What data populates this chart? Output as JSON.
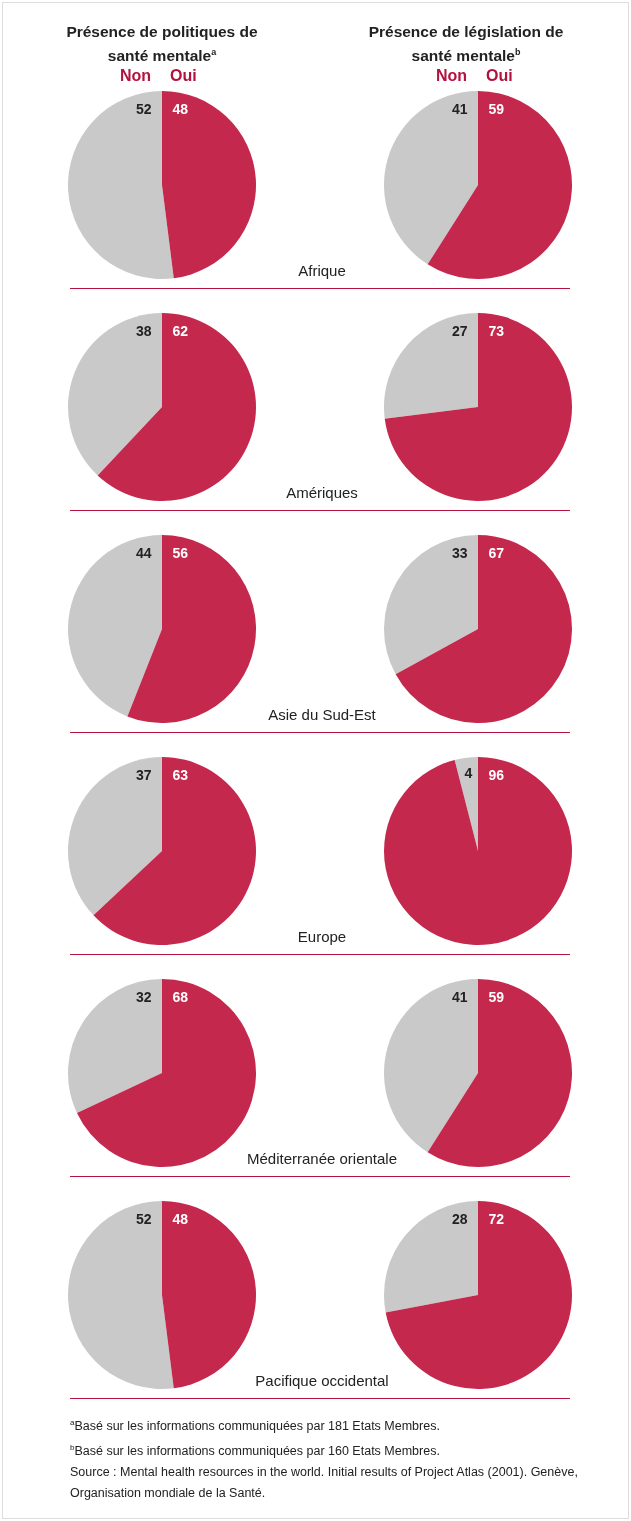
{
  "chart_data": [
    {
      "type": "pie",
      "title": "Présence de politiques de santé mentale$^{a}$",
      "categories": [
        "Non",
        "Oui"
      ],
      "values": [
        52,
        48
      ],
      "colors": [
        "#c9c9c9",
        "#c4284c"
      ],
      "data_labels": true,
      "xlabel": "Afrique"
    },
    {
      "type": "pie",
      "title": "Présence de législation de santé mentale$^{b}$",
      "categories": [
        "Non",
        "Oui"
      ],
      "values": [
        41,
        59
      ],
      "colors": [
        "#c9c9c9",
        "#c4284c"
      ],
      "data_labels": true
    },
    {
      "type": "pie",
      "categories": [
        null,
        null
      ],
      "values": [
        38,
        62
      ],
      "colors": [
        "#c9c9c9",
        "#c4284c"
      ],
      "data_labels": true,
      "xlabel": "Amériques"
    },
    {
      "type": "pie",
      "categories": [
        null,
        null
      ],
      "values": [
        27,
        73
      ],
      "colors": [
        "#c9c9c9",
        "#c4284c"
      ],
      "data_labels": true
    },
    {
      "type": "pie",
      "categories": [
        null,
        null
      ],
      "values": [
        44,
        56
      ],
      "colors": [
        "#c9c9c9",
        "#c4284c"
      ],
      "data_labels": true,
      "xlabel": "Asie du Sud-Est"
    },
    {
      "type": "pie",
      "categories": [
        null,
        null
      ],
      "values": [
        33,
        67
      ],
      "colors": [
        "#c9c9c9",
        "#c4284c"
      ],
      "data_labels": true
    },
    {
      "type": "pie",
      "categories": [
        null,
        null
      ],
      "values": [
        37,
        63
      ],
      "colors": [
        "#c9c9c9",
        "#c4284c"
      ],
      "data_labels": true,
      "xlabel": "Europe"
    },
    {
      "type": "pie",
      "categories": [
        null,
        null
      ],
      "values": [
        4,
        96
      ],
      "colors": [
        "#c9c9c9",
        "#c4284c"
      ],
      "data_labels": true
    },
    {
      "type": "pie",
      "categories": [
        null,
        null
      ],
      "values": [
        32,
        68
      ],
      "colors": [
        "#c9c9c9",
        "#c4284c"
      ],
      "data_labels": true,
      "xlabel": "Méditerranée orientale"
    },
    {
      "type": "pie",
      "categories": [
        null,
        null
      ],
      "values": [
        41,
        59
      ],
      "colors": [
        "#c9c9c9",
        "#c4284c"
      ],
      "data_labels": true
    },
    {
      "type": "pie",
      "categories": [
        null,
        null
      ],
      "values": [
        52,
        48
      ],
      "colors": [
        "#c9c9c9",
        "#c4284c"
      ],
      "data_labels": true,
      "xlabel": "Pacifique occidental"
    },
    {
      "type": "pie",
      "categories": [
        null,
        null
      ],
      "values": [
        28,
        72
      ],
      "colors": [
        "#c9c9c9",
        "#c4284c"
      ],
      "data_labels": true,
      "annotations": [
        "$^{a}$Basé sur les informations communiquées par 181 Etats Membres.",
        "$^{b}$Basé sur les informations communiquées par 160 Etats Membres.",
        "Source : Mental health resources in the world. Initial results of Project Atlas (2001). Genève, Organisation mondiale de la Santé."
      ]
    }
  ]
}
